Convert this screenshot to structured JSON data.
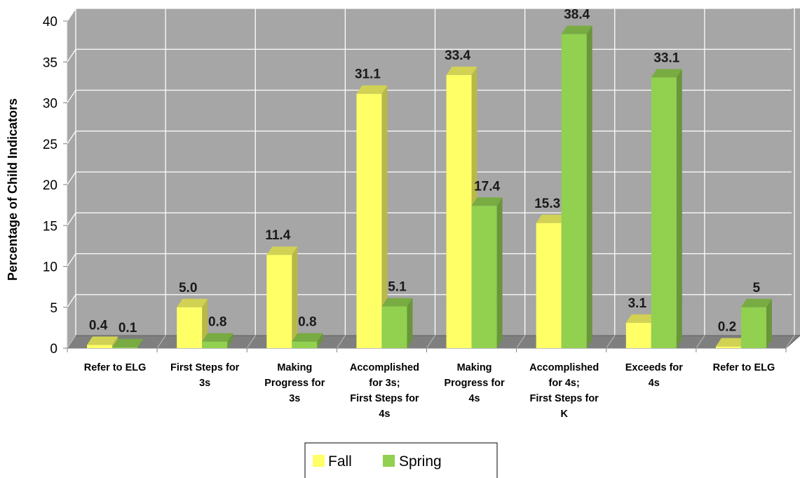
{
  "chart_data": {
    "type": "bar",
    "title": "",
    "xlabel": "",
    "ylabel": "Percentage of Child Indicators",
    "ylim": [
      0,
      40
    ],
    "yticks": [
      "0",
      "5",
      "10",
      "15",
      "20",
      "25",
      "30",
      "35",
      "40"
    ],
    "grid": true,
    "legend_placement": "bottom-center",
    "categories": [
      [
        "Refer to ELG"
      ],
      [
        "First Steps for",
        "3s"
      ],
      [
        "Making",
        "Progress for",
        "3s"
      ],
      [
        "Accomplished",
        "for 3s;",
        "First Steps for",
        "4s"
      ],
      [
        "Making",
        "Progress for",
        "4s"
      ],
      [
        "Accomplished",
        "for 4s;",
        "First Steps for",
        "K"
      ],
      [
        "Exceeds for",
        "4s"
      ],
      [
        "Refer to ELG"
      ]
    ],
    "series": [
      {
        "name": "Fall",
        "color": "#ffff66",
        "values": [
          0.4,
          5.0,
          11.4,
          31.1,
          33.4,
          15.3,
          3.1,
          0.2
        ],
        "labels": [
          "0.4",
          "5.0",
          "11.4",
          "31.1",
          "33.4",
          "15.3",
          "3.1",
          "0.2"
        ]
      },
      {
        "name": "Spring",
        "color": "#92d050",
        "values": [
          0.1,
          0.8,
          0.8,
          5.1,
          17.4,
          38.4,
          33.1,
          5.0
        ],
        "labels": [
          "0.1",
          "0.8",
          "0.8",
          "5.1",
          "17.4",
          "38.4",
          "33.1",
          "5"
        ]
      }
    ]
  }
}
